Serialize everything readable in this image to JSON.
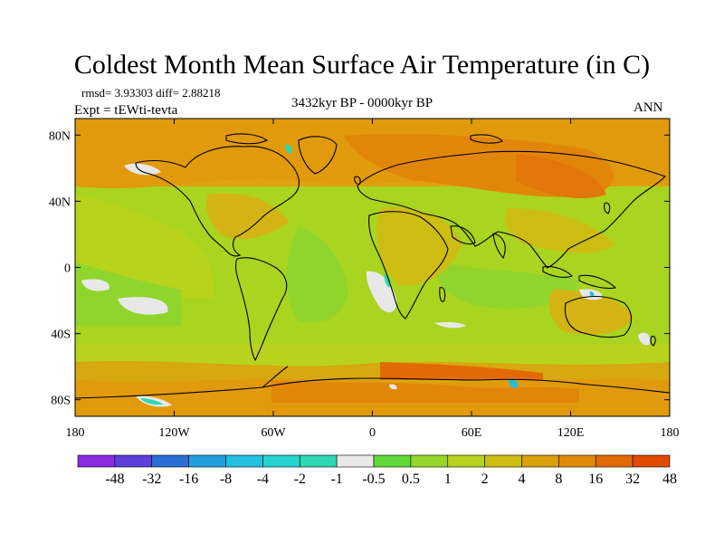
{
  "title": "Coldest Month Mean Surface Air Temperature (in C)",
  "stats": "rmsd= 3.93303 diff= 2.88218",
  "experiment": "Expt = tEWti-tevta",
  "period": "3432kyr BP - 0000kyr BP",
  "season": "ANN",
  "map": {
    "lat_ticks": [
      "80N",
      "40N",
      "0",
      "40S",
      "80S"
    ],
    "lat_values": [
      80,
      40,
      0,
      -40,
      -80
    ],
    "lon_ticks": [
      "180",
      "120W",
      "60W",
      "0",
      "60E",
      "120E",
      "180"
    ],
    "lon_values": [
      -180,
      -120,
      -60,
      0,
      60,
      120,
      180
    ],
    "lat_range": [
      -90,
      90
    ],
    "lon_range": [
      -180,
      180
    ]
  },
  "colorbar": {
    "colors": [
      "#8a2be2",
      "#5b3fd9",
      "#2a6fd6",
      "#1f9ee0",
      "#22bfe0",
      "#25d3cf",
      "#2fd7b0",
      "#e8e8e8",
      "#5fd93a",
      "#94d62a",
      "#b8d31d",
      "#cdbd12",
      "#d9a00c",
      "#e08a0a",
      "#e26a06",
      "#e24a02"
    ],
    "labels": [
      "-48",
      "-32",
      "-16",
      "-8",
      "-4",
      "-2",
      "-1",
      "-0.5",
      "0.5",
      "1",
      "2",
      "4",
      "8",
      "16",
      "32",
      "48"
    ]
  }
}
